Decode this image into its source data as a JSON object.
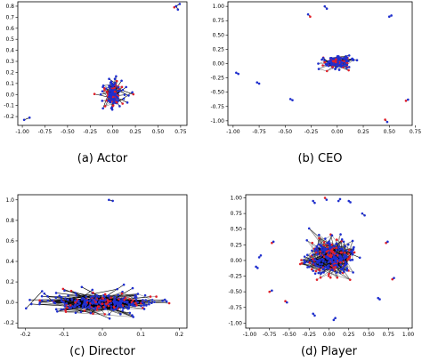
{
  "colors": {
    "node_blue": "#1f2fcf",
    "node_red": "#e0202a",
    "edge": "#000000"
  },
  "chart_data": [
    {
      "type": "scatter",
      "caption": "(a)  Actor",
      "title": "",
      "xlabel": "",
      "ylabel": "",
      "xlim": [
        -1.05,
        0.82
      ],
      "ylim": [
        -0.28,
        0.84
      ],
      "xticks": [
        -1.0,
        -0.75,
        -0.5,
        -0.25,
        0.0,
        0.25,
        0.5,
        0.75
      ],
      "yticks": [
        -0.2,
        -0.1,
        0.0,
        0.1,
        0.2,
        0.3,
        0.4,
        0.5,
        0.6,
        0.7,
        0.8
      ],
      "tick_decimals": 2,
      "ytick_decimals": 1,
      "grid": false,
      "clusters": [
        {
          "cx": 0.0,
          "cy": 0.0,
          "rx": 0.07,
          "ry": 0.1,
          "nodes": 150,
          "red_fraction": 0.3,
          "spokes": 22,
          "spoke_rx": 0.25,
          "spoke_ry": 0.15
        }
      ],
      "isolated_edges": [
        [
          [
            -0.98,
            -0.23
          ],
          [
            -0.92,
            -0.21
          ]
        ],
        [
          [
            0.68,
            0.79
          ],
          [
            0.74,
            0.82
          ]
        ],
        [
          [
            0.72,
            0.77
          ],
          [
            0.7,
            0.8
          ]
        ]
      ]
    },
    {
      "type": "scatter",
      "caption": "(b)  CEO",
      "title": "",
      "xlabel": "",
      "ylabel": "",
      "xlim": [
        -1.05,
        0.72
      ],
      "ylim": [
        -1.08,
        1.08
      ],
      "xticks": [
        -1.0,
        -0.75,
        -0.5,
        -0.25,
        0.0,
        0.25,
        0.5,
        0.75
      ],
      "yticks": [
        -1.0,
        -0.75,
        -0.5,
        -0.25,
        0.0,
        0.25,
        0.5,
        0.75,
        1.0
      ],
      "tick_decimals": 2,
      "ytick_decimals": 2,
      "grid": false,
      "clusters": [
        {
          "cx": 0.0,
          "cy": 0.02,
          "rx": 0.11,
          "ry": 0.1,
          "nodes": 160,
          "red_fraction": 0.3,
          "spokes": 18,
          "spoke_rx": 0.2,
          "spoke_ry": 0.18
        }
      ],
      "isolated_edges": [
        [
          [
            -0.26,
            0.82
          ],
          [
            -0.28,
            0.86
          ]
        ],
        [
          [
            -0.1,
            0.96
          ],
          [
            -0.12,
            1.0
          ]
        ],
        [
          [
            0.5,
            0.82
          ],
          [
            0.52,
            0.84
          ]
        ],
        [
          [
            -0.95,
            -0.18
          ],
          [
            -0.97,
            -0.16
          ]
        ],
        [
          [
            -0.77,
            -0.33
          ],
          [
            -0.75,
            -0.35
          ]
        ],
        [
          [
            -0.45,
            -0.62
          ],
          [
            -0.43,
            -0.64
          ]
        ],
        [
          [
            0.46,
            -0.98
          ],
          [
            0.48,
            -1.02
          ]
        ],
        [
          [
            0.66,
            -0.65
          ],
          [
            0.68,
            -0.63
          ]
        ]
      ]
    },
    {
      "type": "scatter",
      "caption": "(c)  Director",
      "title": "",
      "xlabel": "",
      "ylabel": "",
      "xlim": [
        -0.22,
        0.22
      ],
      "ylim": [
        -0.25,
        1.05
      ],
      "xticks": [
        -0.2,
        -0.1,
        0.0,
        0.1,
        0.2
      ],
      "yticks": [
        -0.2,
        0.0,
        0.2,
        0.4,
        0.6,
        0.8,
        1.0
      ],
      "tick_decimals": 1,
      "ytick_decimals": 1,
      "grid": false,
      "clusters": [
        {
          "cx": 0.0,
          "cy": 0.0,
          "rx": 0.13,
          "ry": 0.08,
          "nodes": 280,
          "red_fraction": 0.25,
          "spokes": 40,
          "spoke_rx": 0.2,
          "spoke_ry": 0.18
        }
      ],
      "isolated_edges": [
        [
          [
            0.017,
            1.0
          ],
          [
            0.027,
            0.99
          ]
        ]
      ]
    },
    {
      "type": "scatter",
      "caption": "(d)  Player",
      "title": "",
      "xlabel": "",
      "ylabel": "",
      "xlim": [
        -1.05,
        1.05
      ],
      "ylim": [
        -1.08,
        1.05
      ],
      "xticks": [
        -1.0,
        -0.75,
        -0.5,
        -0.25,
        0.0,
        0.25,
        0.5,
        0.75,
        1.0
      ],
      "yticks": [
        -1.0,
        -0.75,
        -0.5,
        -0.25,
        0.0,
        0.25,
        0.5,
        0.75,
        1.0
      ],
      "tick_decimals": 2,
      "ytick_decimals": 2,
      "grid": false,
      "clusters": [
        {
          "cx": 0.02,
          "cy": 0.05,
          "rx": 0.28,
          "ry": 0.27,
          "nodes": 300,
          "red_fraction": 0.28,
          "spokes": 30,
          "spoke_rx": 0.38,
          "spoke_ry": 0.3
        }
      ],
      "isolated_edges": [
        [
          [
            -0.2,
            0.95
          ],
          [
            -0.18,
            0.92
          ]
        ],
        [
          [
            -0.05,
            1.0
          ],
          [
            -0.03,
            0.97
          ]
        ],
        [
          [
            0.12,
            0.95
          ],
          [
            0.14,
            0.98
          ]
        ],
        [
          [
            0.25,
            0.95
          ],
          [
            0.27,
            0.93
          ]
        ],
        [
          [
            -0.72,
            0.28
          ],
          [
            -0.7,
            0.3
          ]
        ],
        [
          [
            -0.88,
            0.05
          ],
          [
            -0.86,
            0.08
          ]
        ],
        [
          [
            -0.92,
            -0.1
          ],
          [
            -0.9,
            -0.12
          ]
        ],
        [
          [
            -0.75,
            -0.5
          ],
          [
            -0.72,
            -0.48
          ]
        ],
        [
          [
            -0.55,
            -0.65
          ],
          [
            -0.53,
            -0.67
          ]
        ],
        [
          [
            -0.2,
            -0.85
          ],
          [
            -0.18,
            -0.88
          ]
        ],
        [
          [
            0.08,
            -0.92
          ],
          [
            0.06,
            -0.95
          ]
        ],
        [
          [
            0.62,
            -0.6
          ],
          [
            0.64,
            -0.62
          ]
        ],
        [
          [
            0.72,
            0.28
          ],
          [
            0.74,
            0.3
          ]
        ],
        [
          [
            0.8,
            -0.3
          ],
          [
            0.82,
            -0.28
          ]
        ],
        [
          [
            0.42,
            0.75
          ],
          [
            0.45,
            0.72
          ]
        ]
      ]
    }
  ]
}
